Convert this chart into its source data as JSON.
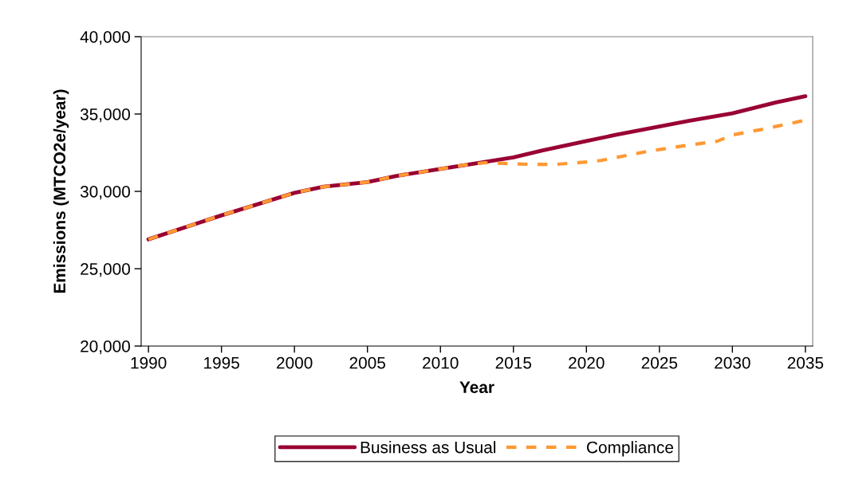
{
  "chart_data": {
    "type": "line",
    "xlabel": "Year",
    "ylabel": "Emissions (MTCO2e/year)",
    "xlim": [
      1989.5,
      2035.5
    ],
    "xticks": [
      1990,
      1995,
      2000,
      2005,
      2010,
      2015,
      2020,
      2025,
      2030,
      2035
    ],
    "ylim": [
      20000,
      40000
    ],
    "yticks": [
      {
        "value": 20000,
        "label": "20,000"
      },
      {
        "value": 25000,
        "label": "25,000"
      },
      {
        "value": 30000,
        "label": "30,000"
      },
      {
        "value": 35000,
        "label": "35,000"
      },
      {
        "value": 40000,
        "label": "40,000"
      }
    ],
    "grid": false,
    "legend": "bottom",
    "marker": "none",
    "series": [
      {
        "name": "Business as Usual",
        "color": "#990033",
        "line_style": "solid",
        "x": [
          1990,
          1995,
          2000,
          2002,
          2005,
          2007,
          2010,
          2012,
          2015,
          2017,
          2020,
          2022,
          2025,
          2027,
          2030,
          2033,
          2035
        ],
        "values": [
          26900,
          28450,
          29900,
          30300,
          30600,
          31000,
          31450,
          31750,
          32200,
          32650,
          33250,
          33650,
          34200,
          34550,
          35050,
          35750,
          36150
        ]
      },
      {
        "name": "Compliance",
        "color": "#ff9933",
        "line_style": "dashed",
        "x": [
          1990,
          1995,
          2000,
          2002,
          2005,
          2007,
          2010,
          2012,
          2013,
          2016,
          2018,
          2020,
          2021,
          2024,
          2026,
          2029,
          2030,
          2032,
          2035
        ],
        "values": [
          26900,
          28450,
          29900,
          30300,
          30600,
          31000,
          31450,
          31750,
          31850,
          31750,
          31750,
          31900,
          32000,
          32550,
          32850,
          33250,
          33650,
          34000,
          34600
        ]
      }
    ]
  }
}
